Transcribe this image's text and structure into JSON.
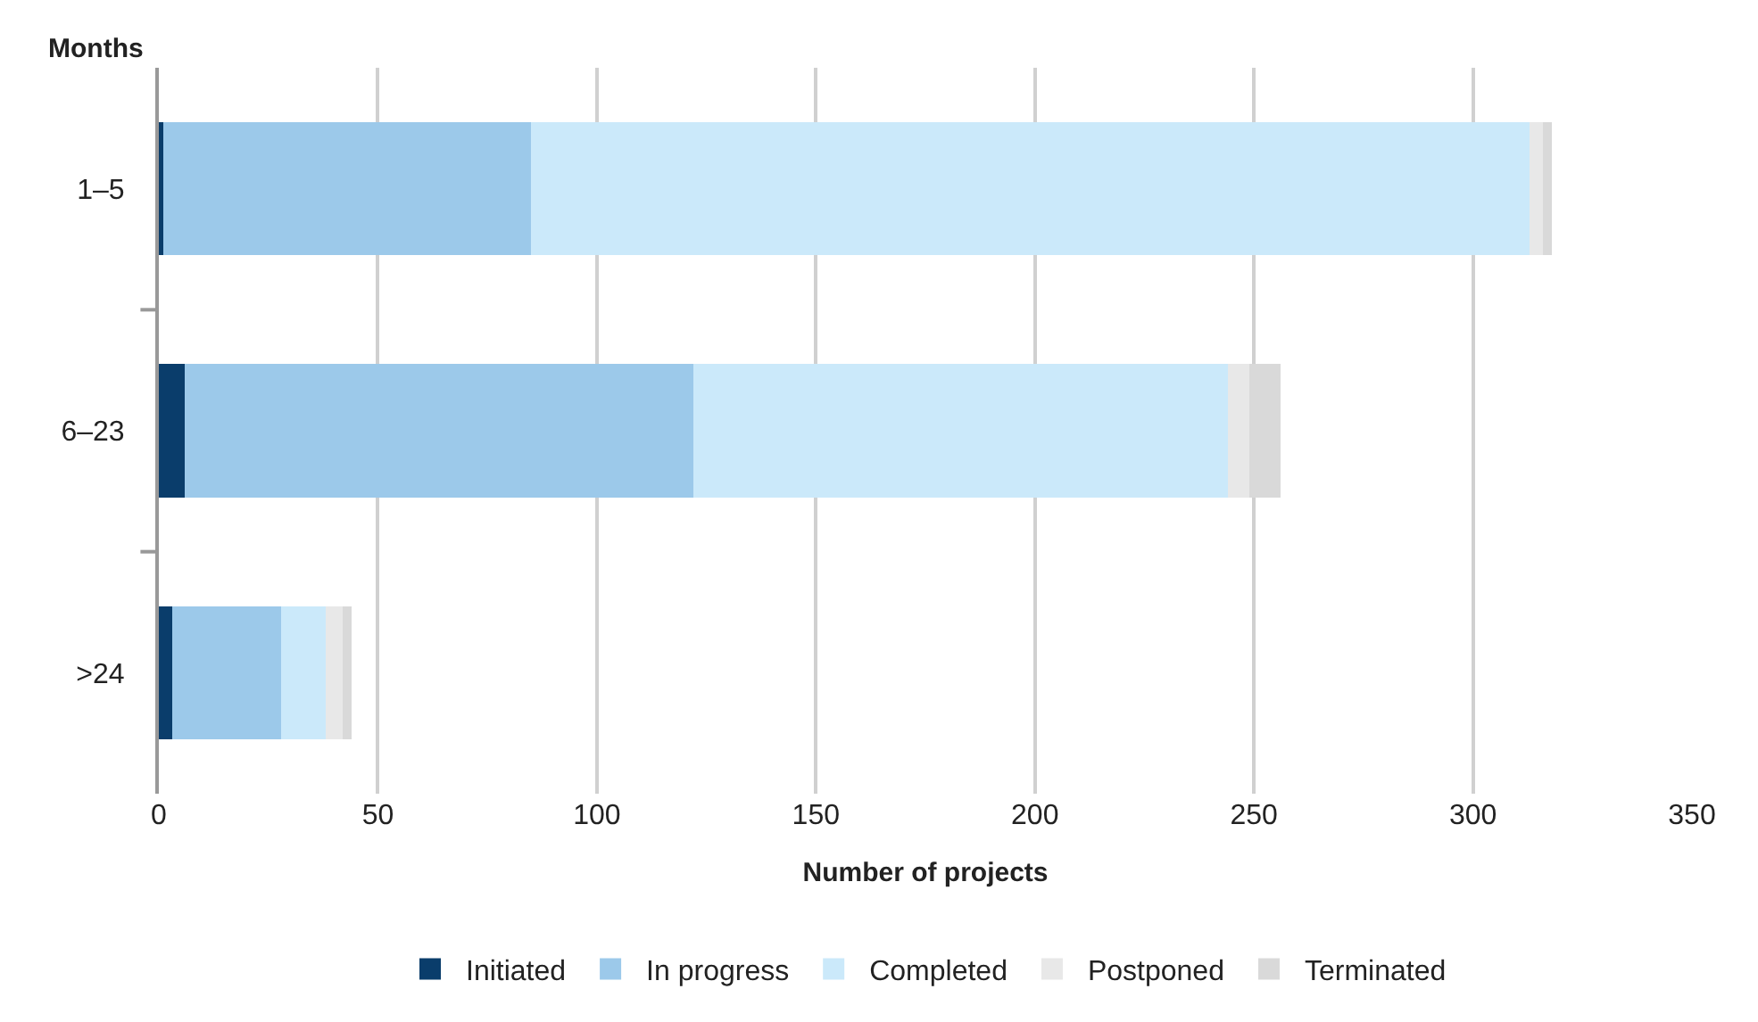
{
  "chart_data": {
    "type": "bar",
    "orientation": "horizontal",
    "stacked": true,
    "ylabel": "Months",
    "xlabel": "Number of projects",
    "categories": [
      "1–5",
      "6–23",
      ">24"
    ],
    "series": [
      {
        "name": "Initiated",
        "color": "#0a3d6b",
        "values": [
          1,
          6,
          3
        ]
      },
      {
        "name": "In progress",
        "color": "#9cc9ea",
        "values": [
          84,
          116,
          25
        ]
      },
      {
        "name": "Completed",
        "color": "#cbe9fa",
        "values": [
          228,
          122,
          10
        ]
      },
      {
        "name": "Postponed",
        "color": "#e8e8e8",
        "values": [
          3,
          5,
          4
        ]
      },
      {
        "name": "Terminated",
        "color": "#d9d9d9",
        "values": [
          2,
          7,
          2
        ]
      }
    ],
    "xlim": [
      0,
      350
    ],
    "xticks": [
      0,
      50,
      100,
      150,
      200,
      250,
      300,
      350
    ],
    "grid": "x",
    "legend": "bottom"
  }
}
